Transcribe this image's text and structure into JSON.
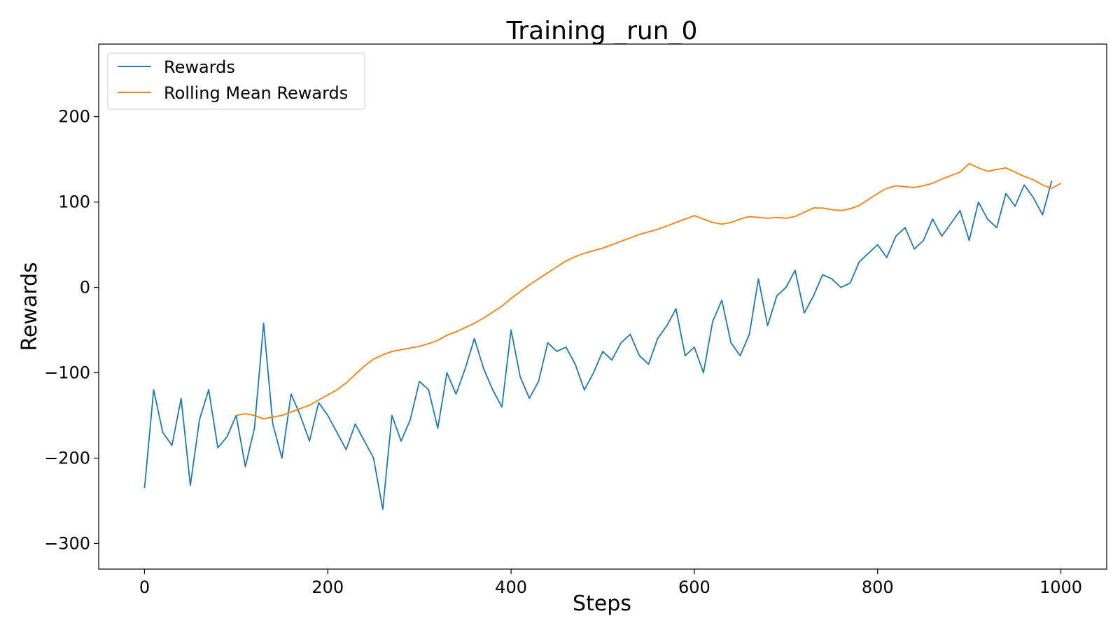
{
  "chart_data": {
    "type": "line",
    "title": "Training _run_0",
    "xlabel": "Steps",
    "ylabel": "Rewards",
    "xlim": [
      -50,
      1050
    ],
    "ylim": [
      -330,
      285
    ],
    "xticks": [
      0,
      200,
      400,
      600,
      800,
      1000
    ],
    "xtick_labels": [
      "0",
      "200",
      "400",
      "600",
      "800",
      "1000"
    ],
    "yticks": [
      -300,
      -200,
      -100,
      0,
      100,
      200
    ],
    "ytick_labels": [
      "−300",
      "−200",
      "−100",
      "0",
      "100",
      "200"
    ],
    "grid": false,
    "legend_position": "top-left",
    "series": [
      {
        "name": "Rewards",
        "color": "#1f77b4",
        "x_start": 0,
        "x_step": 10,
        "values": [
          -235,
          -120,
          -170,
          -185,
          -130,
          -232,
          -155,
          -120,
          -188,
          -175,
          -150,
          -210,
          -165,
          -42,
          -160,
          -200,
          -125,
          -150,
          -180,
          -135,
          -150,
          -170,
          -190,
          -160,
          -180,
          -200,
          -260,
          -150,
          -180,
          -155,
          -110,
          -120,
          -165,
          -100,
          -125,
          -95,
          -60,
          -95,
          -120,
          -140,
          -50,
          -105,
          -130,
          -110,
          -65,
          -75,
          -70,
          -90,
          -120,
          -100,
          -75,
          -85,
          -65,
          -55,
          -80,
          -90,
          -60,
          -45,
          -25,
          -80,
          -70,
          -100,
          -40,
          -15,
          -65,
          -80,
          -55,
          10,
          -45,
          -10,
          0,
          20,
          -30,
          -10,
          15,
          10,
          0,
          5,
          30,
          40,
          50,
          35,
          60,
          70,
          45,
          55,
          80,
          60,
          75,
          90,
          55,
          100,
          80,
          70,
          110,
          95,
          120,
          105,
          85,
          125
        ]
      },
      {
        "name": "Rolling Mean Rewards",
        "color": "#ff7f0e",
        "x": [
          100,
          110,
          120,
          130,
          140,
          150,
          160,
          170,
          180,
          190,
          200,
          210,
          220,
          230,
          240,
          250,
          260,
          270,
          280,
          290,
          300,
          310,
          320,
          330,
          340,
          350,
          360,
          370,
          380,
          390,
          400,
          410,
          420,
          430,
          440,
          450,
          460,
          470,
          480,
          490,
          500,
          510,
          520,
          530,
          540,
          550,
          560,
          570,
          580,
          590,
          600,
          610,
          620,
          630,
          640,
          650,
          660,
          670,
          680,
          690,
          700,
          710,
          720,
          730,
          740,
          750,
          760,
          770,
          780,
          790,
          800,
          810,
          820,
          830,
          840,
          850,
          860,
          870,
          880,
          890,
          900,
          910,
          920,
          930,
          940,
          950,
          960,
          970,
          980,
          990,
          1000
        ],
        "values": [
          -150,
          -148,
          -150,
          -154,
          -152,
          -150,
          -146,
          -142,
          -138,
          -132,
          -126,
          -120,
          -112,
          -102,
          -92,
          -84,
          -79,
          -75,
          -73,
          -71,
          -69,
          -66,
          -62,
          -56,
          -52,
          -47,
          -42,
          -36,
          -29,
          -22,
          -13,
          -5,
          3,
          10,
          17,
          24,
          31,
          36,
          40,
          43,
          46,
          50,
          54,
          58,
          62,
          65,
          68,
          72,
          76,
          80,
          84,
          80,
          76,
          74,
          76,
          80,
          83,
          82,
          81,
          82,
          81,
          83,
          88,
          93,
          93,
          91,
          90,
          92,
          96,
          103,
          110,
          116,
          119,
          118,
          117,
          119,
          122,
          127,
          131,
          135,
          145,
          140,
          136,
          138,
          140,
          135,
          130,
          126,
          120,
          116,
          122
        ]
      }
    ]
  }
}
